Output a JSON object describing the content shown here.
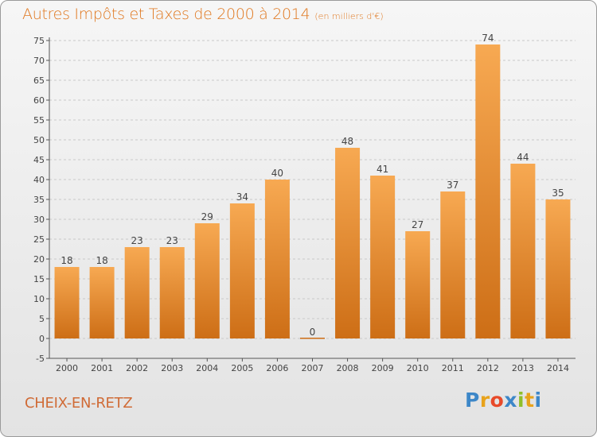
{
  "header": {
    "title": "Autres Impôts et Taxes de 2000 à 2014",
    "unit": "(en milliers d'€)"
  },
  "footer": {
    "commune": "CHEIX-EN-RETZ",
    "logo_letters": [
      "P",
      "r",
      "o",
      "x",
      "i",
      "t",
      "i"
    ],
    "logo_colors": [
      "#3d87c8",
      "#e8a31c",
      "#e84a2a",
      "#3d87c8",
      "#8fbf2a",
      "#e8a31c",
      "#3d87c8"
    ]
  },
  "colors": {
    "bar_top": "#f7a952",
    "bar_bottom": "#cd6e16",
    "title": "#e0771e",
    "grid": "#c9c9c9"
  },
  "chart_data": {
    "type": "bar",
    "title": "Autres Impôts et Taxes de 2000 à 2014",
    "subtitle": "(en milliers d'€)",
    "categories": [
      "2000",
      "2001",
      "2002",
      "2003",
      "2004",
      "2005",
      "2006",
      "2007",
      "2008",
      "2009",
      "2010",
      "2011",
      "2012",
      "2013",
      "2014"
    ],
    "values": [
      18,
      18,
      23,
      23,
      29,
      34,
      40,
      0,
      48,
      41,
      27,
      37,
      74,
      44,
      35
    ],
    "ylim": [
      -5,
      75
    ],
    "yticks": [
      -5,
      0,
      5,
      10,
      15,
      20,
      25,
      30,
      35,
      40,
      45,
      50,
      55,
      60,
      65,
      70,
      75
    ],
    "grid": "horizontal dashed",
    "data_labels": true
  }
}
